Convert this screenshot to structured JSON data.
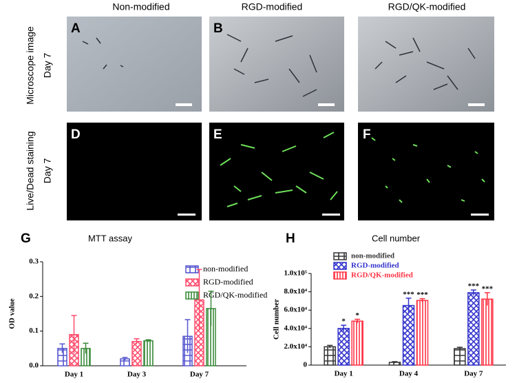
{
  "columns": [
    "Non-modified",
    "RGD-modified",
    "RGD/QK-modified"
  ],
  "rows": [
    {
      "label": "Microscope image",
      "day": "Day 7"
    },
    {
      "label": "Live/Dead staining",
      "day": "Day 7"
    }
  ],
  "panels": [
    "A",
    "B",
    "D",
    "E",
    "F"
  ],
  "chart_data": [
    {
      "type": "bar",
      "panel": "G",
      "title": "MTT assay",
      "y_label": "OD value",
      "categories": [
        "Day 1",
        "Day 3",
        "Day 7"
      ],
      "ylim": [
        0,
        0.3
      ],
      "yticks": [
        {
          "value": 0,
          "label": "0.0"
        },
        0.1,
        0.2,
        0.3
      ],
      "series": [
        {
          "name": "non-modified",
          "color": "#5555d0",
          "values": [
            0.05,
            0.02,
            0.085
          ],
          "errors": [
            0.013,
            0.004,
            0.048
          ]
        },
        {
          "name": "RGD-modified",
          "color": "#ff4d6d",
          "values": [
            0.09,
            0.07,
            0.19
          ],
          "errors": [
            0.055,
            0.008,
            0.088
          ]
        },
        {
          "name": "RGD/QK-modified",
          "color": "#3a8a3a",
          "values": [
            0.05,
            0.072,
            0.165
          ],
          "errors": [
            0.015,
            0.003,
            0.05
          ]
        }
      ]
    },
    {
      "type": "bar",
      "panel": "H",
      "title": "Cell number",
      "y_label": "Cell number",
      "categories": [
        "Day 1",
        "Day 4",
        "Day 7"
      ],
      "ylim": [
        0,
        100000
      ],
      "yticks": [
        0,
        {
          "value": 20000,
          "label": "2.0x10⁴"
        },
        {
          "value": 40000,
          "label": "4.0x10⁴"
        },
        {
          "value": 60000,
          "label": "6.0x10⁴"
        },
        {
          "value": 80000,
          "label": "8.0x10⁴"
        },
        {
          "value": 100000,
          "label": "1.0x10⁵"
        }
      ],
      "series": [
        {
          "name": "non-modified",
          "color": "#333333",
          "values": [
            20000,
            3000,
            18000
          ],
          "errors": [
            1500,
            800,
            1500
          ]
        },
        {
          "name": "RGD-modified",
          "color": "#3333cc",
          "values": [
            40000,
            65000,
            79000
          ],
          "errors": [
            3500,
            8000,
            3000
          ],
          "markers": [
            "*",
            "***",
            "***"
          ]
        },
        {
          "name": "RGD/QK-modified",
          "color": "#ff3344",
          "values": [
            48000,
            70500,
            72000
          ],
          "errors": [
            2000,
            2000,
            7000
          ],
          "markers": [
            "*",
            "***",
            "***"
          ]
        }
      ]
    }
  ]
}
